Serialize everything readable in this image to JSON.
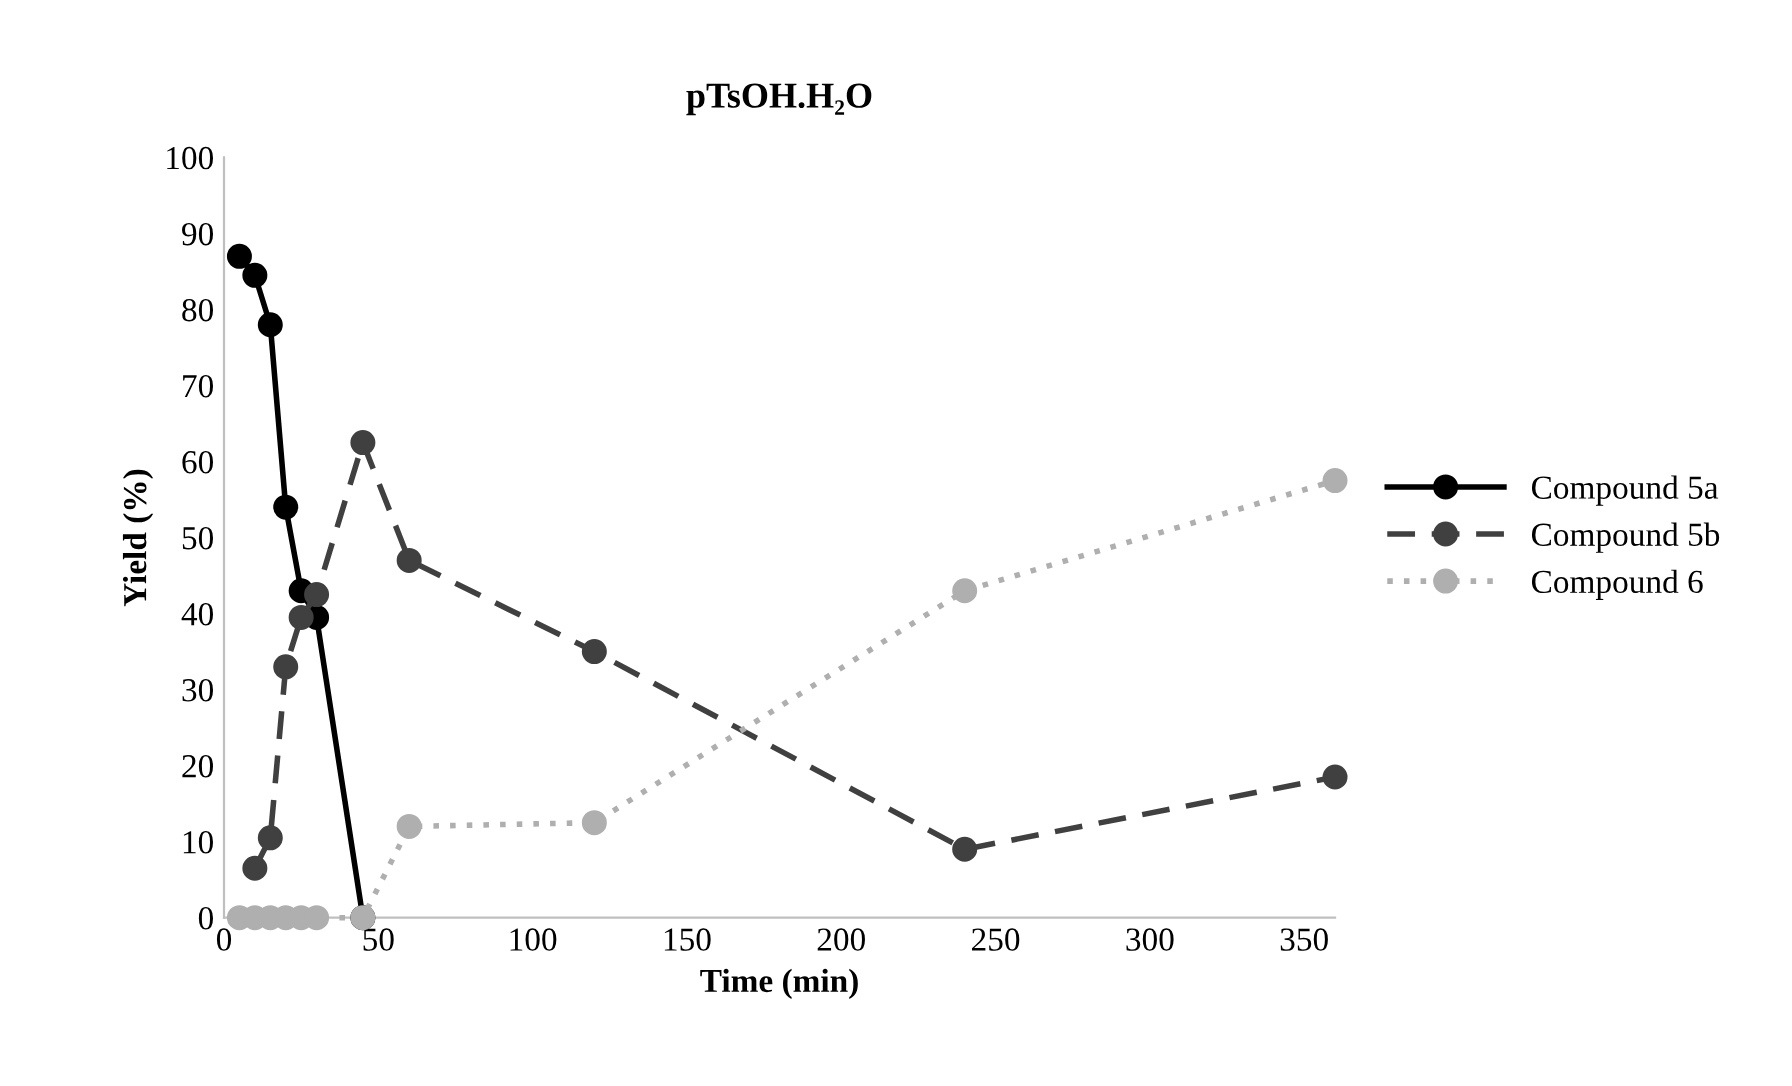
{
  "chart_data": {
    "type": "line",
    "title": "pTsOH.H₂O",
    "xlabel": "Time (min)",
    "ylabel": "Yield (%)",
    "xlim": [
      0,
      360
    ],
    "xticks": [
      0,
      50,
      100,
      150,
      200,
      250,
      300,
      350
    ],
    "ylim": [
      0,
      100
    ],
    "yticks": [
      0,
      10,
      20,
      30,
      40,
      50,
      60,
      70,
      80,
      90,
      100
    ],
    "grid": false,
    "legend": "right",
    "marker": "circle",
    "series": [
      {
        "name": "Compound 5a",
        "color": "#000000",
        "line_style": "solid",
        "x": [
          5,
          10,
          15,
          20,
          25,
          30,
          45
        ],
        "values": [
          87,
          84.5,
          78,
          54,
          43,
          39.5,
          0
        ]
      },
      {
        "name": "Compound 5b",
        "color": "#404040",
        "line_style": "dashed",
        "x": [
          10,
          15,
          20,
          25,
          30,
          45,
          60,
          120,
          240,
          360
        ],
        "values": [
          6.5,
          10.5,
          33,
          39.5,
          42.5,
          62.5,
          47,
          35,
          9,
          18.5
        ]
      },
      {
        "name": "Compound 6",
        "color": "#afafaf",
        "line_style": "dotted",
        "x": [
          5,
          10,
          15,
          20,
          25,
          30,
          45,
          60,
          120,
          240,
          360
        ],
        "values": [
          0,
          0,
          0,
          0,
          0,
          0,
          0,
          12,
          12.5,
          43,
          57.5
        ]
      }
    ]
  }
}
